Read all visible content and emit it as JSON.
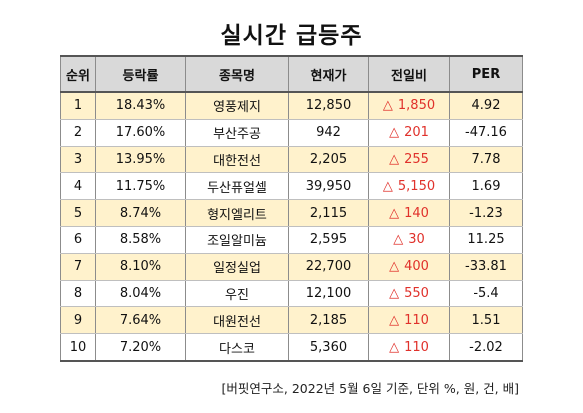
{
  "title": "실시간 급등주",
  "headers": {
    "rank": "순위",
    "rate": "등락률",
    "name": "종목명",
    "price": "현재가",
    "change": "전일비",
    "per": "PER"
  },
  "change_symbol": "△",
  "colors": {
    "header_bg": "#d9d9d9",
    "odd_row_bg": "#fff2cc",
    "even_row_bg": "#ffffff",
    "change_text": "#e0312b"
  },
  "rows": [
    {
      "rank": "1",
      "rate": "18.43%",
      "name": "영풍제지",
      "price": "12,850",
      "change": "1,850",
      "per": "4.92"
    },
    {
      "rank": "2",
      "rate": "17.60%",
      "name": "부산주공",
      "price": "942",
      "change": "201",
      "per": "-47.16"
    },
    {
      "rank": "3",
      "rate": "13.95%",
      "name": "대한전선",
      "price": "2,205",
      "change": "255",
      "per": "7.78"
    },
    {
      "rank": "4",
      "rate": "11.75%",
      "name": "두산퓨얼셀",
      "price": "39,950",
      "change": "5,150",
      "per": "1.69"
    },
    {
      "rank": "5",
      "rate": "8.74%",
      "name": "형지엘리트",
      "price": "2,115",
      "change": "140",
      "per": "-1.23"
    },
    {
      "rank": "6",
      "rate": "8.58%",
      "name": "조일알미늄",
      "price": "2,595",
      "change": "30",
      "per": "11.25"
    },
    {
      "rank": "7",
      "rate": "8.10%",
      "name": "일정실업",
      "price": "22,700",
      "change": "400",
      "per": "-33.81"
    },
    {
      "rank": "8",
      "rate": "8.04%",
      "name": "우진",
      "price": "12,100",
      "change": "550",
      "per": "-5.4"
    },
    {
      "rank": "9",
      "rate": "7.64%",
      "name": "대원전선",
      "price": "2,185",
      "change": "110",
      "per": "1.51"
    },
    {
      "rank": "10",
      "rate": "7.20%",
      "name": "다스코",
      "price": "5,360",
      "change": "110",
      "per": "-2.02"
    }
  ],
  "footnote": "[버핏연구소, 2022년 5월 6일 기준, 단위 %, 원, 건, 배]"
}
